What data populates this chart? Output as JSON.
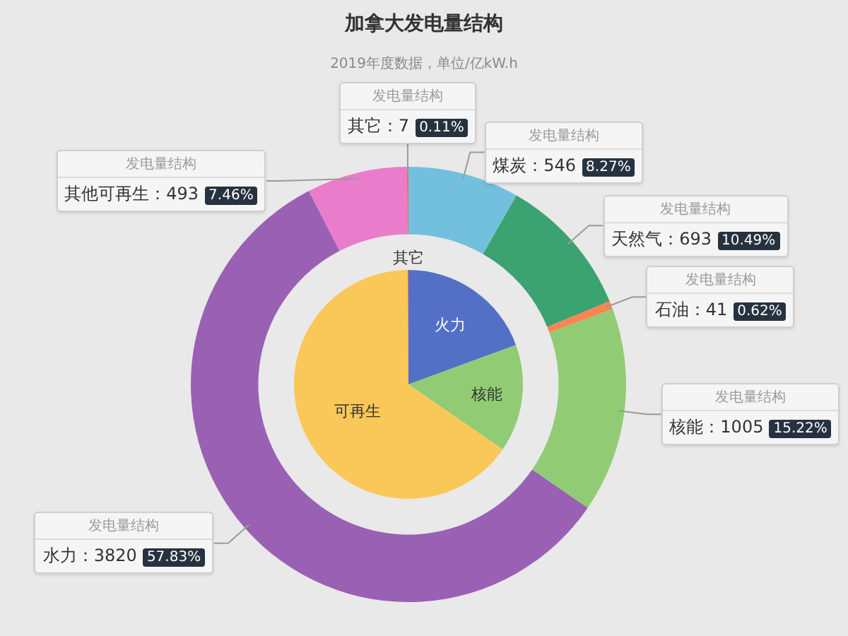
{
  "chart_data": [
    {
      "type": "donut",
      "title": "加拿大发电量结构",
      "subtitle": "2019年度数据，单位/亿kW.h",
      "categories": [
        null,
        null,
        null,
        null,
        null,
        null,
        null
      ],
      "series": [
        {
          "name": "发电量结构",
          "values": [
            546,
            693,
            41,
            1005,
            3820,
            493,
            7
          ],
          "value_labels": [
            "煤炭：546 8.27%",
            "天然气：693 10.49%",
            "石油：41 0.62%",
            "核能：1005 15.22%",
            "水力：3820 57.83%",
            "其他可再生：493 7.46%",
            "其它：7 0.11%"
          ]
        }
      ],
      "colors": [
        "#73c0de",
        "#3ba272",
        "#fc8452",
        "#91cc75",
        "#9a60b4",
        "#ea7ccc",
        "#ee6666"
      ]
    },
    {
      "type": "pie",
      "categories": [
        "火力",
        "核能",
        "可再生",
        "其它"
      ],
      "values": [
        19.4,
        15.2,
        65.3,
        0.1
      ],
      "colors": [
        "#5470c6",
        "#91cc75",
        "#fac858",
        "#ee6666"
      ]
    }
  ]
}
